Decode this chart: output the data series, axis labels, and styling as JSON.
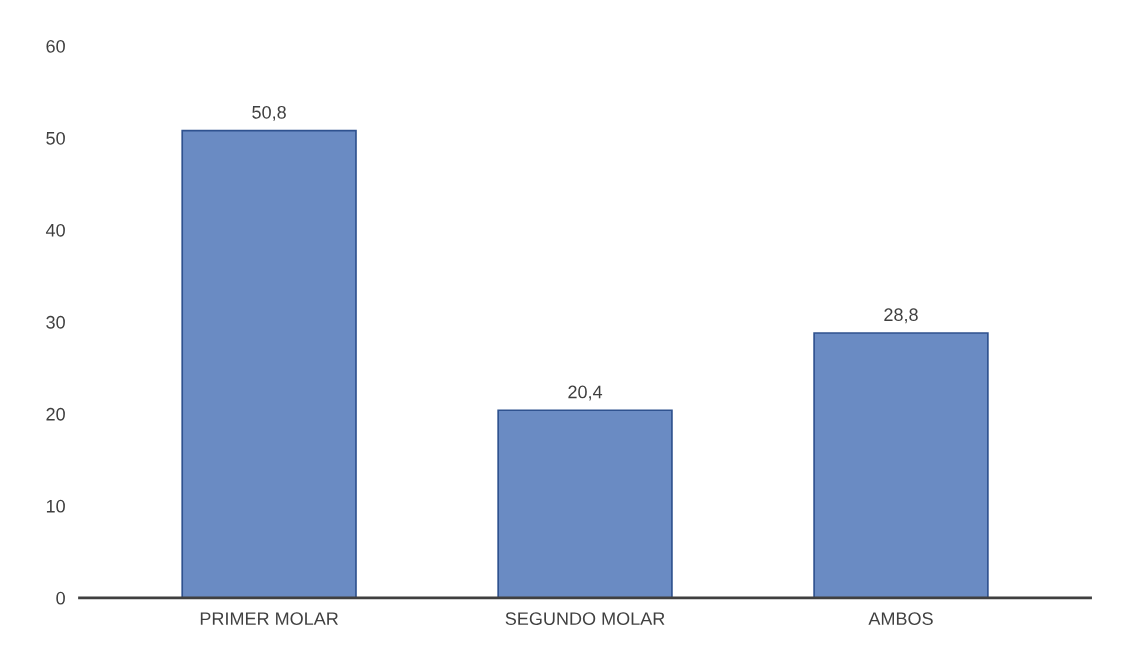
{
  "chart_data": {
    "type": "bar",
    "categories": [
      "PRIMER MOLAR",
      "SEGUNDO MOLAR",
      "AMBOS"
    ],
    "values": [
      50.8,
      20.4,
      28.8
    ],
    "value_labels": [
      "50,8",
      "20,4",
      "28,8"
    ],
    "color": "#5b87d2",
    "ylim": [
      0,
      60
    ],
    "yticks": [
      0,
      10,
      20,
      30,
      40,
      50,
      60
    ],
    "grid": false
  }
}
